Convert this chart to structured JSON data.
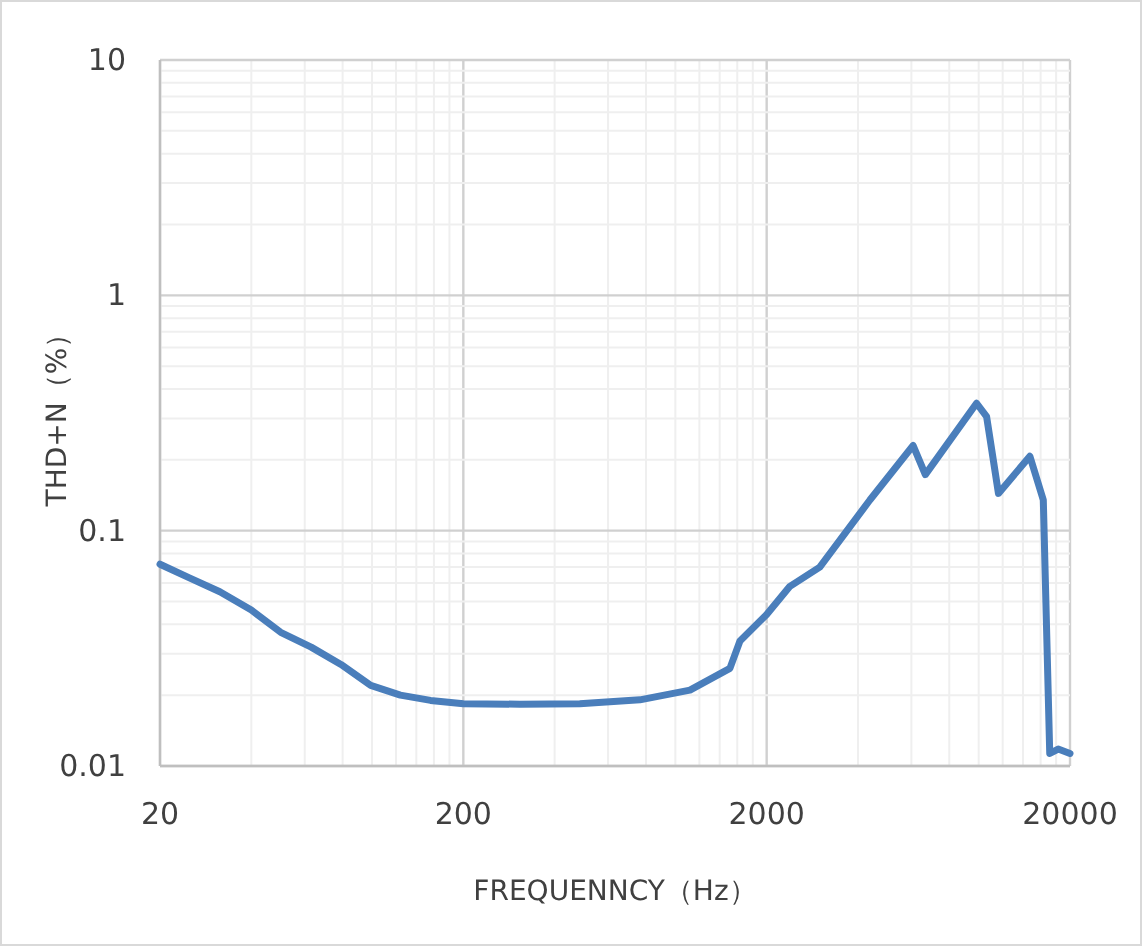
{
  "chart_data": {
    "type": "line",
    "xlabel": "FREQUENNCY（Hz）",
    "ylabel": "THD+N（%）",
    "log": "xy",
    "grid": true,
    "marker": "none",
    "line_style": "solid",
    "xlim": [
      20,
      20000
    ],
    "ylim": [
      0.01,
      10
    ],
    "xticks": [
      20,
      200,
      2000,
      20000
    ],
    "yticks": [
      0.01,
      0.1,
      1,
      10
    ],
    "series": [
      {
        "color": "#4a7ebb",
        "x": [
          20,
          25,
          31.5,
          40,
          50,
          63,
          79,
          99,
          124,
          156,
          200,
          307,
          484,
          764,
          1117,
          1513,
          1633,
          2000,
          2386,
          2993,
          4378,
          6080,
          6670,
          9840,
          10620,
          11620,
          14750,
          16330,
          17150,
          18280,
          20000
        ],
        "values": [
          0.072,
          0.063,
          0.055,
          0.046,
          0.037,
          0.032,
          0.027,
          0.022,
          0.02,
          0.019,
          0.0184,
          0.0183,
          0.0184,
          0.0191,
          0.021,
          0.026,
          0.034,
          0.044,
          0.058,
          0.07,
          0.135,
          0.23,
          0.173,
          0.348,
          0.305,
          0.144,
          0.207,
          0.135,
          0.0113,
          0.0118,
          0.0113
        ]
      }
    ]
  }
}
